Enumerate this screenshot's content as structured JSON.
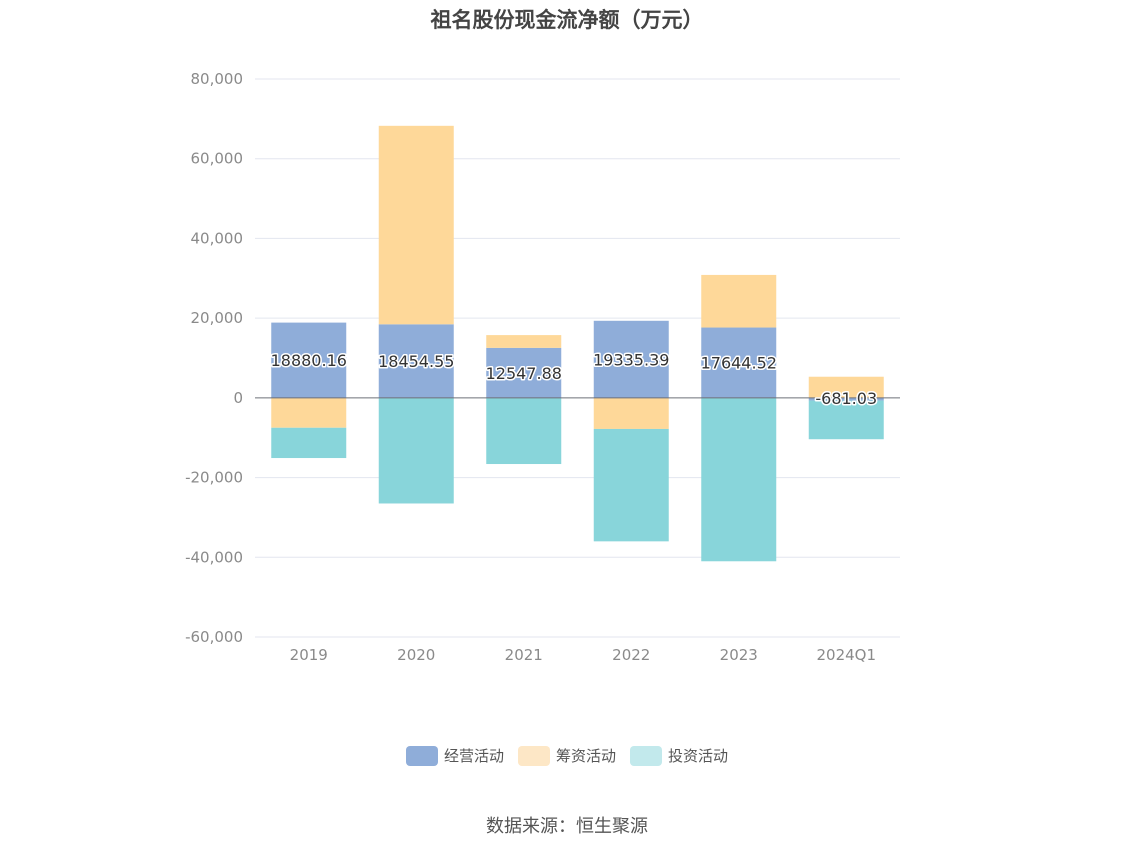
{
  "page": {
    "title": "祖名股份现金流净额（万元）",
    "source": "数据来源：恒生聚源"
  },
  "chart_data": {
    "type": "bar",
    "stacked": true,
    "title": "祖名股份现金流净额（万元）",
    "xlabel": "",
    "ylabel": "",
    "categories": [
      "2019",
      "2020",
      "2021",
      "2022",
      "2023",
      "2024Q1"
    ],
    "ylim": [
      -60000,
      80000
    ],
    "yticks": [
      80000,
      60000,
      40000,
      20000,
      0,
      -20000,
      -40000,
      -60000
    ],
    "ytick_labels": [
      "80,000",
      "60,000",
      "40,000",
      "20,000",
      "0",
      "-20,000",
      "-40,000",
      "-60,000"
    ],
    "grid": true,
    "legend_position": "bottom-center",
    "series": [
      {
        "name": "经营活动",
        "color": "#8fadd9",
        "values": [
          18880.16,
          18454.55,
          12547.88,
          19335.39,
          17644.52,
          -681.03
        ],
        "labels": [
          "18880.16",
          "18454.55",
          "12547.88",
          "19335.39",
          "17644.52",
          "-681.03"
        ]
      },
      {
        "name": "筹资活动",
        "color": "#fed899",
        "legend_color": "#fde7c6",
        "values": [
          -7500,
          49800,
          3200,
          -7800,
          13200,
          5300
        ]
      },
      {
        "name": "投资活动",
        "color": "#88d5da",
        "legend_color": "#c2e9ec",
        "values": [
          -7600,
          -26500,
          -16600,
          -28200,
          -41000,
          -9700
        ]
      }
    ]
  }
}
